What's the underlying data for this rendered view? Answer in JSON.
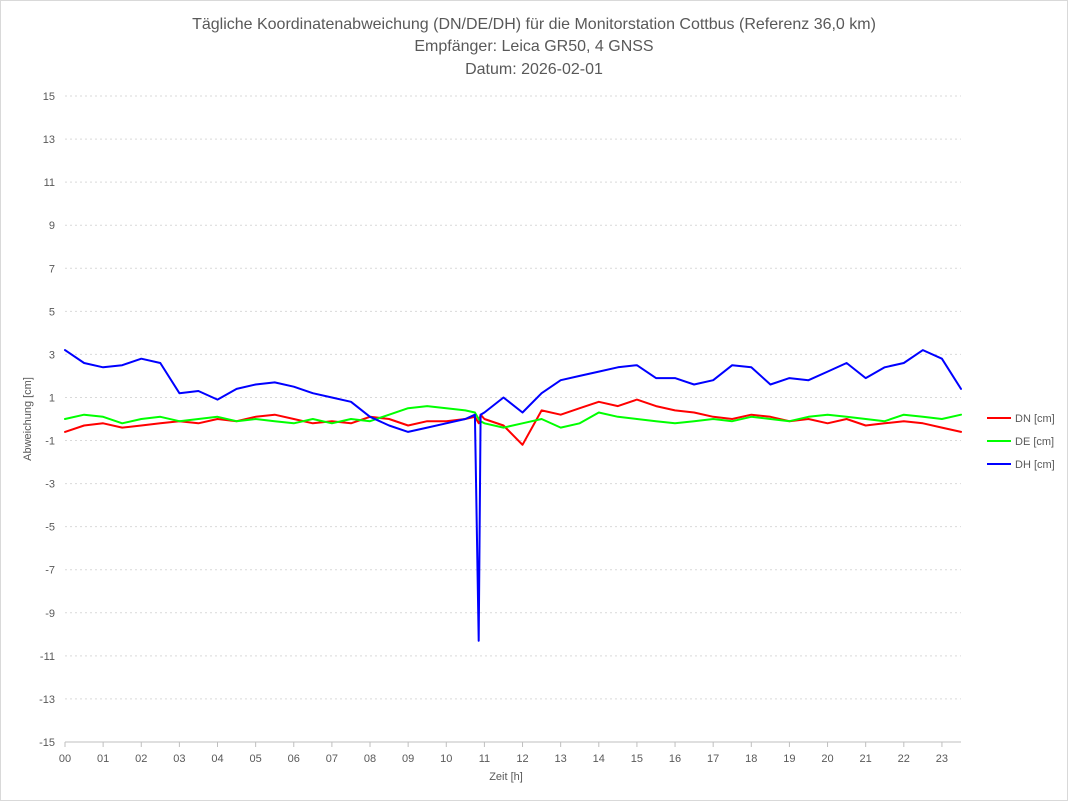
{
  "chart_data": {
    "type": "line",
    "title_lines": [
      "Tägliche Koordinatenabweichung (DN/DE/DH) für die Monitorstation Cottbus (Referenz 36,0 km)",
      "Empfänger: Leica GR50, 4 GNSS",
      "Datum: 2026-02-01"
    ],
    "xlabel": "Zeit [h]",
    "ylabel": "Abweichung [cm]",
    "xlim": [
      0,
      23.5
    ],
    "ylim": [
      -15,
      15
    ],
    "x_ticks": [
      0,
      1,
      2,
      3,
      4,
      5,
      6,
      7,
      8,
      9,
      10,
      11,
      12,
      13,
      14,
      15,
      16,
      17,
      18,
      19,
      20,
      21,
      22,
      23
    ],
    "x_tick_labels": [
      "00",
      "01",
      "02",
      "03",
      "04",
      "05",
      "06",
      "07",
      "08",
      "09",
      "10",
      "11",
      "12",
      "13",
      "14",
      "15",
      "16",
      "17",
      "18",
      "19",
      "20",
      "21",
      "22",
      "23"
    ],
    "y_ticks": [
      15,
      13,
      11,
      9,
      7,
      5,
      3,
      1,
      -1,
      -3,
      -5,
      -7,
      -9,
      -11,
      -13,
      -15
    ],
    "y_tick_labels": [
      "15",
      "13",
      "11",
      "9",
      "7",
      "5",
      "3",
      "1",
      "-1",
      "-3",
      "-5",
      "-7",
      "-9",
      "-11",
      "-13",
      "-15"
    ],
    "grid": true,
    "legend_position": "right",
    "x": [
      0.0,
      0.5,
      1.0,
      1.5,
      2.0,
      2.5,
      3.0,
      3.5,
      4.0,
      4.5,
      5.0,
      5.5,
      6.0,
      6.5,
      7.0,
      7.5,
      8.0,
      8.5,
      9.0,
      9.5,
      10.0,
      10.5,
      10.75,
      10.85,
      10.9,
      11.0,
      11.5,
      12.0,
      12.5,
      13.0,
      13.5,
      14.0,
      14.5,
      15.0,
      15.5,
      16.0,
      16.5,
      17.0,
      17.5,
      18.0,
      18.5,
      19.0,
      19.5,
      20.0,
      20.5,
      21.0,
      21.5,
      22.0,
      22.5,
      23.0,
      23.5
    ],
    "series": [
      {
        "name": "DN [cm]",
        "color": "#ff0000",
        "values": [
          -0.6,
          -0.3,
          -0.2,
          -0.4,
          -0.3,
          -0.2,
          -0.1,
          -0.2,
          0.0,
          -0.1,
          0.1,
          0.2,
          0.0,
          -0.2,
          -0.1,
          -0.2,
          0.1,
          0.0,
          -0.3,
          -0.1,
          -0.1,
          0.0,
          0.1,
          -0.2,
          0.2,
          0.0,
          -0.3,
          -1.2,
          0.4,
          0.2,
          0.5,
          0.8,
          0.6,
          0.9,
          0.6,
          0.4,
          0.3,
          0.1,
          0.0,
          0.2,
          0.1,
          -0.1,
          0.0,
          -0.2,
          0.0,
          -0.3,
          -0.2,
          -0.1,
          -0.2,
          -0.4,
          -0.6
        ]
      },
      {
        "name": "DE [cm]",
        "color": "#00ff00",
        "values": [
          0.0,
          0.2,
          0.1,
          -0.2,
          0.0,
          0.1,
          -0.1,
          0.0,
          0.1,
          -0.1,
          0.0,
          -0.1,
          -0.2,
          0.0,
          -0.2,
          0.0,
          -0.1,
          0.2,
          0.5,
          0.6,
          0.5,
          0.4,
          0.3,
          0.0,
          -0.1,
          -0.2,
          -0.4,
          -0.2,
          0.0,
          -0.4,
          -0.2,
          0.3,
          0.1,
          0.0,
          -0.1,
          -0.2,
          -0.1,
          0.0,
          -0.1,
          0.1,
          0.0,
          -0.1,
          0.1,
          0.2,
          0.1,
          0.0,
          -0.1,
          0.2,
          0.1,
          0.0,
          0.2
        ]
      },
      {
        "name": "DH [cm]",
        "color": "#0000ff",
        "values": [
          3.2,
          2.6,
          2.4,
          2.5,
          2.8,
          2.6,
          1.2,
          1.3,
          0.9,
          1.4,
          1.6,
          1.7,
          1.5,
          1.2,
          1.0,
          0.8,
          0.1,
          -0.3,
          -0.6,
          -0.4,
          -0.2,
          0.0,
          0.2,
          -10.3,
          0.2,
          0.3,
          1.0,
          0.3,
          1.2,
          1.8,
          2.0,
          2.2,
          2.4,
          2.5,
          1.9,
          1.9,
          1.6,
          1.8,
          2.5,
          2.4,
          1.6,
          1.9,
          1.8,
          2.2,
          2.6,
          1.9,
          2.4,
          2.6,
          3.2,
          2.8,
          1.4
        ]
      }
    ]
  }
}
